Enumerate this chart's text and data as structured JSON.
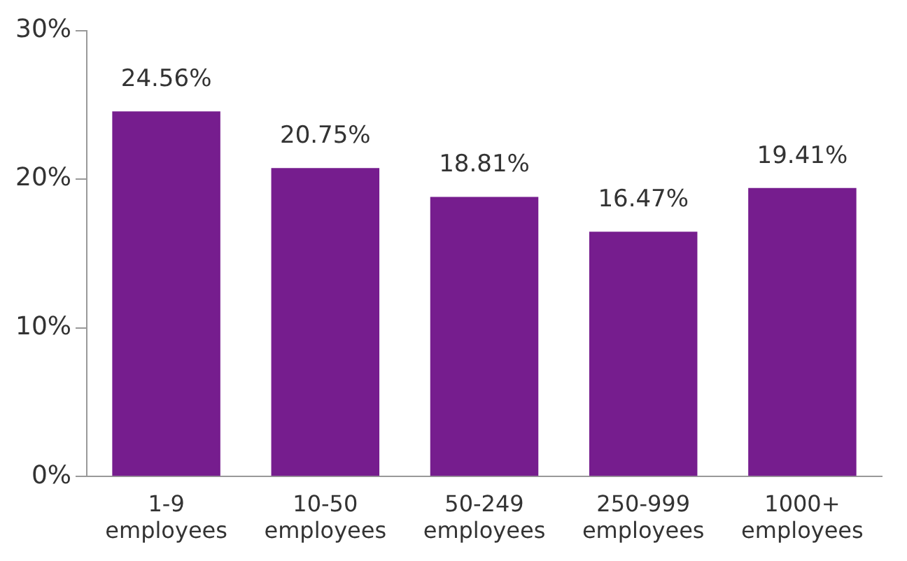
{
  "chart_data": {
    "type": "bar",
    "categories": [
      "1-9 employees",
      "10-50 employees",
      "50-249 employees",
      "250-999 employees",
      "1000+ employees"
    ],
    "values": [
      24.56,
      20.75,
      18.81,
      16.47,
      19.41
    ],
    "color": "#761d8e",
    "ylim": [
      0,
      30
    ],
    "yticks": [
      {
        "value": 0,
        "label": "0%"
      },
      {
        "value": 10,
        "label": "10%"
      },
      {
        "value": 20,
        "label": "20%"
      },
      {
        "value": 30,
        "label": "30%"
      }
    ],
    "value_labels": [
      "24.56%",
      "20.75%",
      "18.81%",
      "16.47%",
      "19.41%"
    ],
    "grid": false,
    "legend": false
  }
}
